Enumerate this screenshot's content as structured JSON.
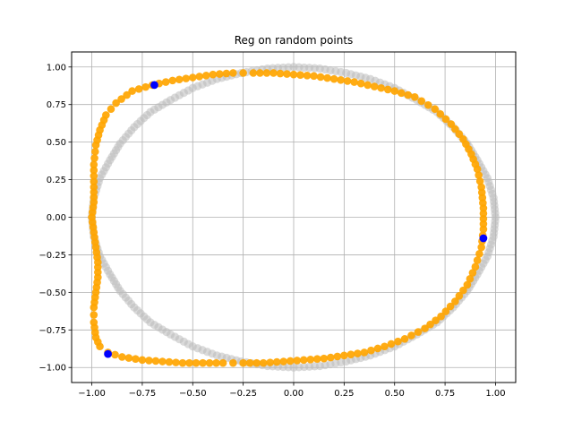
{
  "chart_data": {
    "type": "scatter",
    "title": "Reg on random points",
    "xlabel": "",
    "ylabel": "",
    "xlim": [
      -1.1,
      1.1
    ],
    "ylim": [
      -1.1,
      1.1
    ],
    "xticks": [
      -1.0,
      -0.75,
      -0.5,
      -0.25,
      0.0,
      0.25,
      0.5,
      0.75,
      1.0
    ],
    "yticks": [
      -1.0,
      -0.75,
      -0.5,
      -0.25,
      0.0,
      0.25,
      0.5,
      0.75,
      1.0
    ],
    "xtick_labels": [
      "−1.00",
      "−0.75",
      "−0.50",
      "−0.25",
      "0.00",
      "0.25",
      "0.50",
      "0.75",
      "1.00"
    ],
    "ytick_labels": [
      "−1.00",
      "−0.75",
      "−0.50",
      "−0.25",
      "0.00",
      "0.25",
      "0.50",
      "0.75",
      "1.00"
    ],
    "grid": true,
    "series": [
      {
        "role": "reference",
        "color": "#bbbbbb",
        "opacity": 0.55,
        "points": [
          [
            0.0,
            1.0
          ],
          [
            0.13,
            0.99
          ],
          [
            0.26,
            0.96
          ],
          [
            0.38,
            0.92
          ],
          [
            0.5,
            0.86
          ],
          [
            0.61,
            0.78
          ],
          [
            0.71,
            0.7
          ],
          [
            0.79,
            0.6
          ],
          [
            0.86,
            0.49
          ],
          [
            0.91,
            0.38
          ],
          [
            0.96,
            0.26
          ],
          [
            0.99,
            0.13
          ],
          [
            1.0,
            0.0
          ],
          [
            0.99,
            -0.13
          ],
          [
            0.96,
            -0.26
          ],
          [
            0.91,
            -0.38
          ],
          [
            0.86,
            -0.49
          ],
          [
            0.79,
            -0.6
          ],
          [
            0.71,
            -0.7
          ],
          [
            0.61,
            -0.78
          ],
          [
            0.5,
            -0.86
          ],
          [
            0.38,
            -0.92
          ],
          [
            0.26,
            -0.96
          ],
          [
            0.13,
            -0.99
          ],
          [
            0.0,
            -1.0
          ],
          [
            -0.13,
            -0.99
          ],
          [
            -0.26,
            -0.96
          ],
          [
            -0.38,
            -0.92
          ],
          [
            -0.5,
            -0.86
          ],
          [
            -0.61,
            -0.78
          ],
          [
            -0.71,
            -0.7
          ],
          [
            -0.79,
            -0.6
          ],
          [
            -0.86,
            -0.49
          ],
          [
            -0.91,
            -0.38
          ],
          [
            -0.96,
            -0.26
          ],
          [
            -0.99,
            -0.13
          ],
          [
            -1.0,
            0.0
          ],
          [
            -0.99,
            0.13
          ],
          [
            -0.96,
            0.26
          ],
          [
            -0.91,
            0.38
          ],
          [
            -0.86,
            0.49
          ],
          [
            -0.79,
            0.6
          ],
          [
            -0.71,
            0.7
          ],
          [
            -0.61,
            0.78
          ],
          [
            -0.5,
            0.86
          ],
          [
            -0.38,
            0.92
          ],
          [
            -0.26,
            0.96
          ],
          [
            -0.13,
            0.99
          ],
          [
            0.0,
            1.0
          ]
        ]
      },
      {
        "role": "regularized",
        "color": "#ffa500",
        "points": [
          [
            -0.99,
            0.2
          ],
          [
            -0.99,
            0.35
          ],
          [
            -0.98,
            0.48
          ],
          [
            -0.96,
            0.58
          ],
          [
            -0.93,
            0.68
          ],
          [
            -0.88,
            0.76
          ],
          [
            -0.8,
            0.84
          ],
          [
            -0.7,
            0.88
          ],
          [
            -0.6,
            0.91
          ],
          [
            -0.5,
            0.93
          ],
          [
            -0.4,
            0.95
          ],
          [
            -0.3,
            0.96
          ],
          [
            -0.2,
            0.96
          ],
          [
            -0.1,
            0.96
          ],
          [
            0.0,
            0.95
          ],
          [
            0.1,
            0.94
          ],
          [
            0.2,
            0.92
          ],
          [
            0.3,
            0.9
          ],
          [
            0.4,
            0.87
          ],
          [
            0.5,
            0.84
          ],
          [
            0.6,
            0.8
          ],
          [
            0.7,
            0.72
          ],
          [
            0.78,
            0.62
          ],
          [
            0.84,
            0.52
          ],
          [
            0.88,
            0.42
          ],
          [
            0.91,
            0.32
          ],
          [
            0.93,
            0.2
          ],
          [
            0.94,
            0.06
          ],
          [
            0.94,
            -0.08
          ],
          [
            0.93,
            -0.2
          ],
          [
            0.9,
            -0.33
          ],
          [
            0.86,
            -0.45
          ],
          [
            0.8,
            -0.56
          ],
          [
            0.73,
            -0.66
          ],
          [
            0.65,
            -0.74
          ],
          [
            0.55,
            -0.81
          ],
          [
            0.45,
            -0.86
          ],
          [
            0.35,
            -0.9
          ],
          [
            0.25,
            -0.92
          ],
          [
            0.15,
            -0.94
          ],
          [
            0.05,
            -0.95
          ],
          [
            -0.05,
            -0.96
          ],
          [
            -0.15,
            -0.97
          ],
          [
            -0.25,
            -0.97
          ],
          [
            -0.35,
            -0.97
          ],
          [
            -0.45,
            -0.97
          ],
          [
            -0.55,
            -0.97
          ],
          [
            -0.65,
            -0.96
          ],
          [
            -0.75,
            -0.95
          ],
          [
            -0.85,
            -0.93
          ],
          [
            -0.92,
            -0.9
          ],
          [
            -0.96,
            -0.86
          ],
          [
            -0.98,
            -0.8
          ],
          [
            -0.99,
            -0.7
          ],
          [
            -0.99,
            -0.6
          ],
          [
            -0.98,
            -0.5
          ],
          [
            -0.97,
            -0.4
          ],
          [
            -0.97,
            -0.3
          ],
          [
            -0.98,
            -0.2
          ],
          [
            -0.99,
            -0.1
          ],
          [
            -1.0,
            0.0
          ],
          [
            -0.99,
            0.1
          ],
          [
            -0.99,
            0.2
          ]
        ]
      },
      {
        "role": "anchors",
        "color": "#0000ff",
        "points": [
          [
            -0.69,
            0.88
          ],
          [
            0.94,
            -0.14
          ],
          [
            -0.92,
            -0.91
          ]
        ]
      }
    ]
  }
}
